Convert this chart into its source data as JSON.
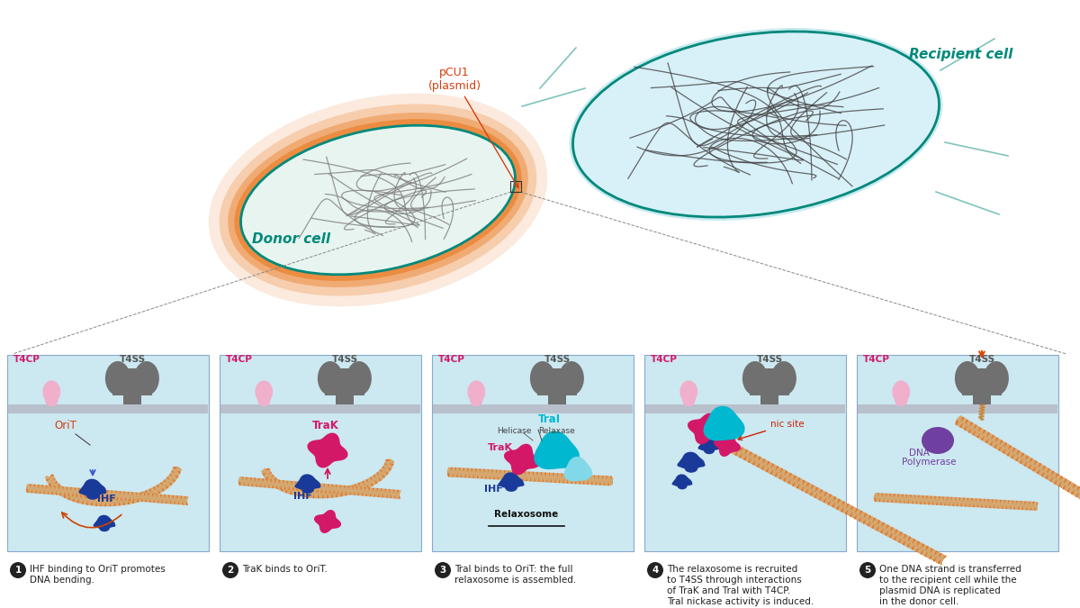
{
  "bg_color": "#ffffff",
  "panel_bg": "#cce8f0",
  "membrane_color": "#b0b8c4",
  "T4SS_color": "#707070",
  "T4CP_color": "#f0b0cc",
  "IHF_color": "#1a3a9a",
  "TraK_color": "#d41868",
  "TraI_helicase_color": "#00b8d0",
  "TraI_relaxase_color": "#80d8e8",
  "DNA_orange": "#e07830",
  "DNA_tan": "#d4a870",
  "DNA_single": "#c88840",
  "teal_color": "#00897b",
  "orange_label": "#d44010",
  "purple_color": "#7040a0",
  "dark_blue": "#1a2080",
  "caption_nums": [
    "1",
    "2",
    "3",
    "4",
    "5"
  ],
  "captions": [
    "IHF binding to OriT promotes\nDNA bending.",
    "TraK binds to OriT.",
    "TraI binds to OriT: the full\nrelaxosome is assembled.",
    "The relaxosome is recruited\nto T4SS through interactions\nof TraK and TraI with T4CP.\nTraI nickase activity is induced.",
    "One DNA strand is transferred\nto the recipient cell while the\nplasmid DNA is replicated\nin the donor cell."
  ],
  "donor_cell_label": "Donor cell",
  "recipient_cell_label": "Recipient cell",
  "plasmid_label": "pCU1\n(plasmid)"
}
